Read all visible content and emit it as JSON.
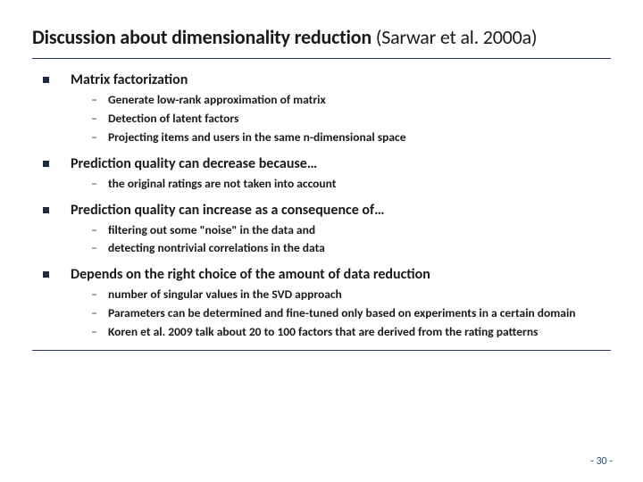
{
  "colors": {
    "text": "#1a1a1a",
    "rule": "#2b3a55",
    "bullet": "#1f2a44",
    "pagenum": "#2b4a7a",
    "background": "#ffffff"
  },
  "title": {
    "main": "Discussion about dimensionality reduction",
    "ref": "(Sarwar et al. 2000a)"
  },
  "sections": [
    {
      "heading": "Matrix factorization",
      "items": [
        "Generate low-rank approximation of matrix",
        "Detection of latent factors",
        "Projecting items and users in the same n-dimensional space"
      ]
    },
    {
      "heading": "Prediction quality can decrease because…",
      "items": [
        "the original ratings are not taken into account"
      ]
    },
    {
      "heading": "Prediction quality can increase as a consequence of…",
      "items": [
        "filtering out some \"noise\" in the data and",
        "detecting nontrivial correlations in the data"
      ]
    },
    {
      "heading": "Depends on the right choice of the amount of data reduction",
      "items": [
        "number of singular values in the SVD approach",
        "Parameters can be determined and fine-tuned only based on experiments in a certain domain",
        "Koren et al. 2009 talk about 20 to 100 factors that are derived from the rating patterns"
      ]
    }
  ],
  "page_number": "- 30 -"
}
